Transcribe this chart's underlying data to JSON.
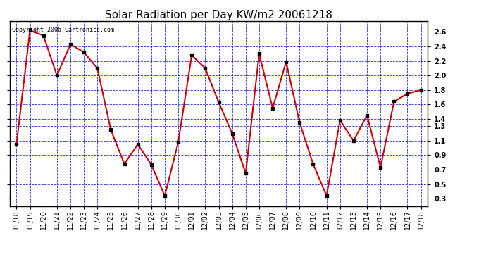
{
  "title": "Solar Radiation per Day KW/m2 20061218",
  "copyright": "Copyright 2006 Cartronics.com",
  "dates": [
    "11/18",
    "11/19",
    "11/20",
    "11/21",
    "11/22",
    "11/23",
    "11/24",
    "11/25",
    "11/26",
    "11/27",
    "11/28",
    "11/29",
    "11/30",
    "12/01",
    "12/02",
    "12/03",
    "12/04",
    "12/05",
    "12/06",
    "12/07",
    "12/08",
    "12/09",
    "12/10",
    "12/11",
    "12/12",
    "12/13",
    "12/14",
    "12/15",
    "12/16",
    "12/17",
    "12/18"
  ],
  "values": [
    1.05,
    2.62,
    2.55,
    2.0,
    2.43,
    2.32,
    2.1,
    1.25,
    0.78,
    1.05,
    0.77,
    0.34,
    1.08,
    2.28,
    2.1,
    1.63,
    1.2,
    0.65,
    2.3,
    1.55,
    2.19,
    1.35,
    0.78,
    0.34,
    1.38,
    1.1,
    1.45,
    0.73,
    1.64,
    1.75,
    1.8
  ],
  "line_color": "#cc0000",
  "marker_color": "#000000",
  "bg_color": "#ffffff",
  "grid_color": "#0000cc",
  "ylim": [
    0.2,
    2.75
  ],
  "yticks": [
    0.3,
    0.5,
    0.7,
    0.9,
    1.1,
    1.3,
    1.4,
    1.6,
    1.8,
    2.0,
    2.2,
    2.4,
    2.6
  ],
  "title_fontsize": 11,
  "tick_fontsize": 7,
  "copyright_fontsize": 6
}
